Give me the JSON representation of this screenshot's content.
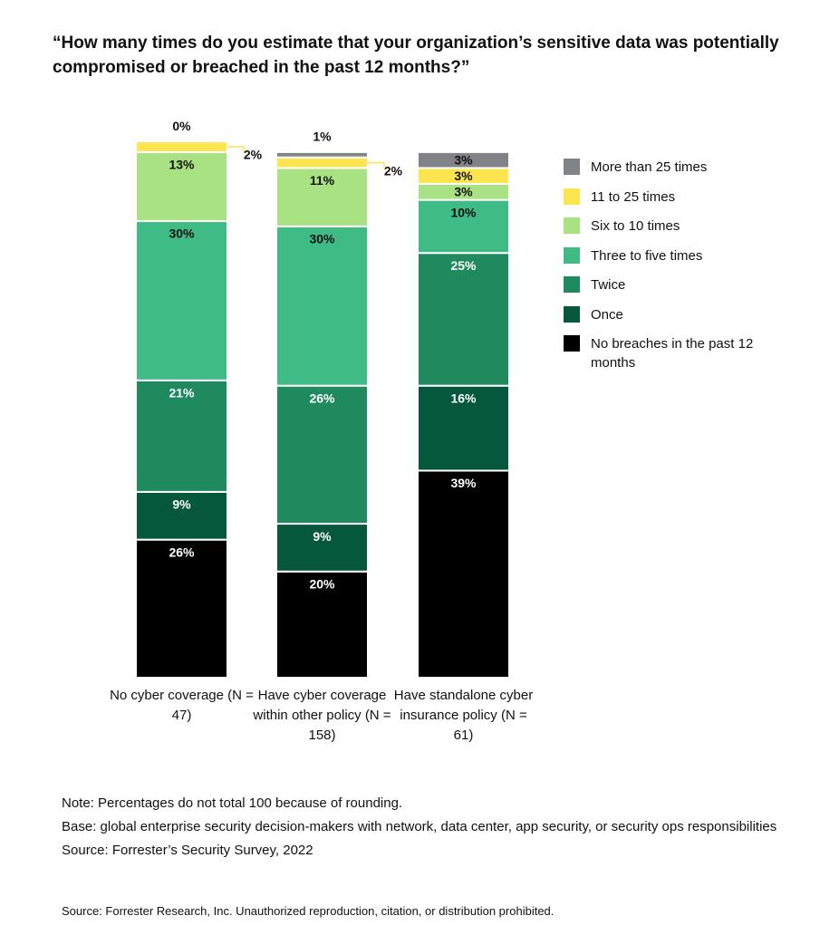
{
  "chart_data": {
    "type": "stacked-bar",
    "title": "“How many times do you estimate that your organization’s sensitive data was potentially compromised or breached in the past 12 months?”",
    "categories": [
      "No cyber coverage (N = 47)",
      "Have cyber coverage within other policy (N = 158)",
      "Have standalone cyber insurance policy (N = 61)"
    ],
    "series": [
      {
        "name": "No breaches in the past 12 months",
        "color": "#000000",
        "values": [
          26,
          20,
          39
        ],
        "value_labels": [
          "26%",
          "20%",
          "39%"
        ]
      },
      {
        "name": "Once",
        "color": "#06583c",
        "values": [
          9,
          9,
          16
        ],
        "value_labels": [
          "9%",
          "9%",
          "16%"
        ]
      },
      {
        "name": "Twice",
        "color": "#1f8a5d",
        "values": [
          21,
          26,
          25
        ],
        "value_labels": [
          "21%",
          "26%",
          "25%"
        ]
      },
      {
        "name": "Three to five times",
        "color": "#3fbc85",
        "values": [
          30,
          30,
          10
        ],
        "value_labels": [
          "30%",
          "30%",
          "10%"
        ]
      },
      {
        "name": "Six to 10 times",
        "color": "#a9e282",
        "values": [
          13,
          11,
          3
        ],
        "value_labels": [
          "13%",
          "11%",
          "3%"
        ]
      },
      {
        "name": "11 to 25 times",
        "color": "#fce54e",
        "values": [
          2,
          2,
          3
        ],
        "value_labels": [
          "2%",
          "2%",
          "3%"
        ]
      },
      {
        "name": "More than 25 times",
        "color": "#818386",
        "values": [
          0,
          1,
          3
        ],
        "value_labels": [
          "0%",
          "1%",
          "3%"
        ]
      }
    ],
    "notes": [
      "Note: Percentages do not total 100 because of rounding.",
      "Base: global enterprise security decision-makers with network, data center, app security, or security ops responsibilities",
      "Source: Forrester’s Security Survey, 2022"
    ],
    "footer": "Source: Forrester Research, Inc. Unauthorized reproduction, citation, or distribution prohibited."
  }
}
